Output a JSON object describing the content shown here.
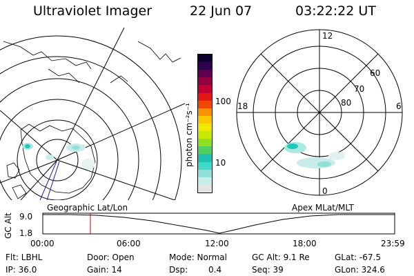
{
  "header": {
    "title": "Ultraviolet Imager",
    "date": "22 Jun 07",
    "time": "03:22:22 UT"
  },
  "left_map": {
    "caption": "Geographic Lat/Lon"
  },
  "right_map": {
    "caption": "Apex MLat/MLT",
    "mlt_labels": {
      "top": "12",
      "left": "18",
      "right": "6",
      "bottom": "0"
    },
    "mlat_labels": [
      "60",
      "70",
      "80"
    ]
  },
  "colorbar": {
    "unit_label": "photon cm⁻²s⁻¹",
    "tick_labels": [
      "100",
      "10"
    ],
    "colors": [
      "#e4e4e4",
      "#c8ece8",
      "#90e0d8",
      "#40d8c8",
      "#20c0b0",
      "#50d060",
      "#90e020",
      "#c8e800",
      "#f0e800",
      "#f8c800",
      "#f89000",
      "#f04800",
      "#e01818",
      "#c00030",
      "#900040",
      "#600050",
      "#300050",
      "#100030"
    ]
  },
  "timeline": {
    "ylabel": "GC Alt",
    "ymax_label": "9.0",
    "ymin_label": "1.8",
    "x_ticks": [
      "00:00",
      "06:00",
      "12:00",
      "18:00",
      "23:59"
    ],
    "marker_time_label": "03:22"
  },
  "status": {
    "flt": "Flt: LBHL",
    "door": "Door: Open",
    "mode": "Mode: Normal",
    "gc_alt": "GC Alt: 9.1 Re",
    "glat": "GLat: -67.5",
    "ip": "IP: 36.0",
    "gain": "Gain: 14",
    "dsp_label": "Dsp:",
    "dsp_value": "0.4",
    "seq": "Seq: 39",
    "glon": "GLon: 324.6"
  },
  "colors": {
    "marker": "#c00000",
    "track": "#1a1aa8",
    "aurora_core": "#20c8b8",
    "aurora_halo": "#a8e8e0"
  }
}
